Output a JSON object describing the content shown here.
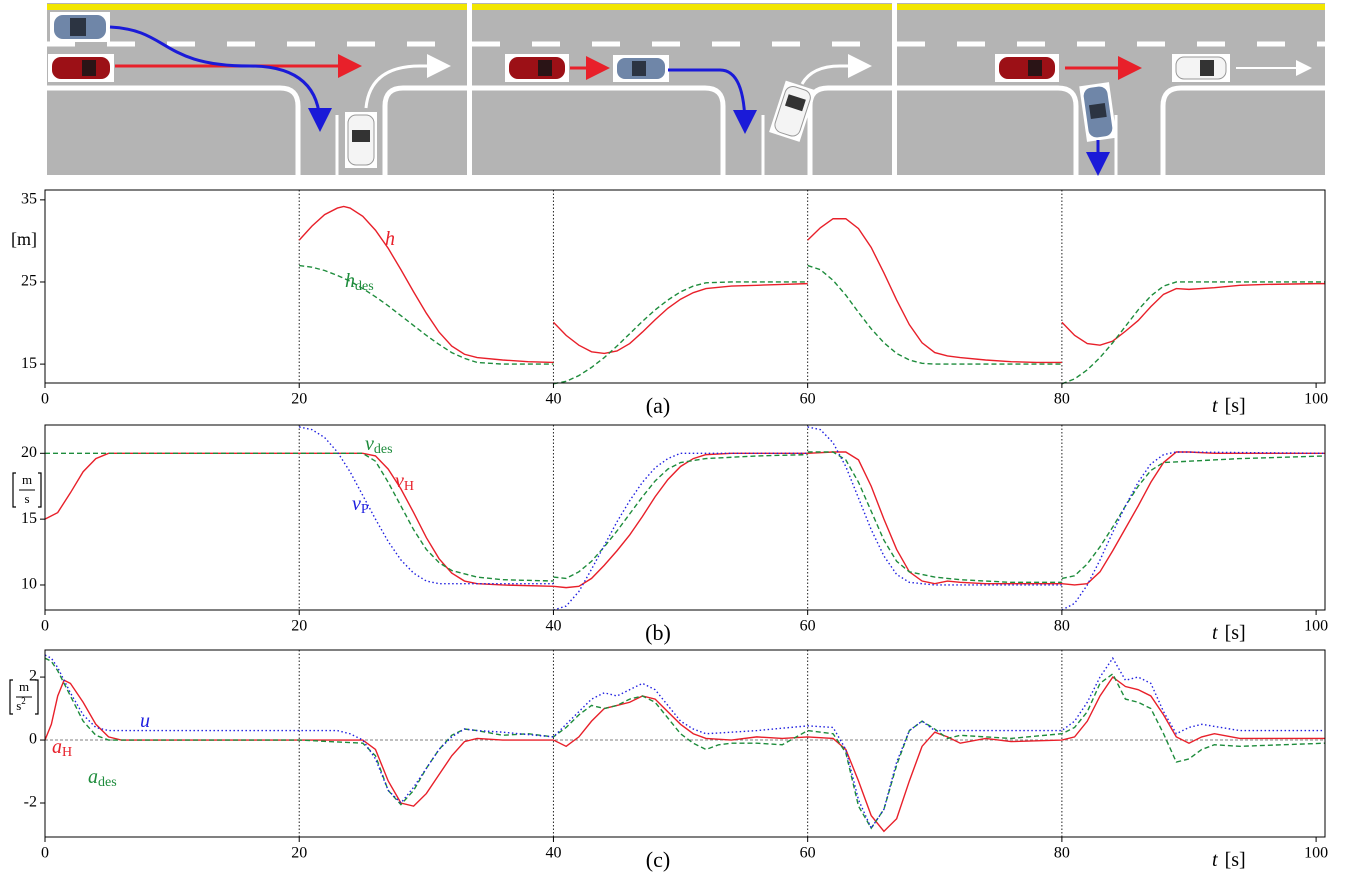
{
  "chart_data": [
    {
      "type": "line",
      "xlim": [
        0,
        100.7
      ],
      "ylim": [
        12.7,
        36.2
      ],
      "xticks": [
        0,
        20,
        40,
        60,
        80,
        100
      ],
      "yticks": [
        15,
        25,
        35
      ],
      "vlines": [
        20,
        40,
        60,
        80
      ],
      "y_label": "[m]",
      "x_label": [
        "t",
        "[s]"
      ],
      "panel_label": "(a)",
      "series": [
        {
          "name": "h",
          "color": "#e8202a",
          "style": "solid",
          "x": [
            20,
            21,
            22,
            23,
            23.5,
            24,
            25,
            26,
            27,
            28,
            29,
            30,
            31,
            32,
            33,
            34,
            36,
            38,
            40,
            40,
            40,
            41,
            42,
            43,
            44,
            45,
            46,
            47,
            48,
            49,
            50,
            51,
            52,
            54,
            56,
            58,
            60,
            60,
            60,
            61,
            62,
            63,
            64,
            65,
            66,
            67,
            68,
            69,
            70,
            71,
            72,
            74,
            76,
            78,
            80,
            80,
            80,
            81,
            82,
            83,
            84,
            85,
            86,
            87,
            88,
            89,
            90,
            92,
            94,
            96,
            100,
            100.7
          ],
          "values": [
            30.1,
            31.8,
            33.2,
            34.0,
            34.2,
            34.0,
            33.0,
            31.3,
            29.1,
            26.5,
            23.8,
            21.2,
            18.9,
            17.2,
            16.2,
            15.8,
            15.5,
            15.3,
            15.2,
            null,
            20.1,
            18.5,
            17.3,
            16.5,
            16.3,
            16.6,
            17.5,
            18.9,
            20.4,
            21.8,
            22.9,
            23.7,
            24.2,
            24.5,
            24.6,
            24.7,
            24.8,
            null,
            30.1,
            31.6,
            32.7,
            32.7,
            31.5,
            29.2,
            26.1,
            22.8,
            19.8,
            17.6,
            16.4,
            16.0,
            15.8,
            15.5,
            15.3,
            15.2,
            15.2,
            null,
            20.1,
            18.5,
            17.5,
            17.3,
            17.8,
            19.0,
            20.3,
            22.0,
            23.5,
            24.2,
            24.1,
            24.3,
            24.6,
            24.7,
            24.8,
            24.8
          ]
        },
        {
          "name": "h",
          "name_sub": "des",
          "color": "#1e8c3c",
          "style": "dashed",
          "x": [
            20,
            21,
            22,
            23,
            24,
            25,
            26,
            27,
            28,
            29,
            30,
            31,
            32,
            33,
            34,
            36,
            40,
            40,
            40,
            41,
            42,
            43,
            44,
            45,
            46,
            47,
            48,
            49,
            50,
            51,
            52,
            54,
            60,
            60,
            60,
            61,
            62,
            63,
            64,
            65,
            66,
            67,
            68,
            69,
            70,
            80,
            80,
            80,
            81,
            82,
            83,
            84,
            85,
            86,
            87,
            88,
            89,
            100.7
          ],
          "values": [
            27,
            26.8,
            26.4,
            25.8,
            25.1,
            24.2,
            23.2,
            22.1,
            20.9,
            19.7,
            18.5,
            17.4,
            16.4,
            15.7,
            15.2,
            15,
            15,
            null,
            12.6,
            12.9,
            13.6,
            14.6,
            15.8,
            17.2,
            18.7,
            20.2,
            21.6,
            22.8,
            23.8,
            24.5,
            24.9,
            25,
            25,
            null,
            27,
            26.5,
            25.2,
            23.4,
            21.3,
            19.3,
            17.6,
            16.3,
            15.5,
            15.1,
            15.0,
            15,
            null,
            12.6,
            13.2,
            14.3,
            15.8,
            17.6,
            19.6,
            21.6,
            23.3,
            24.5,
            25,
            25
          ]
        }
      ]
    },
    {
      "type": "line",
      "xlim": [
        0,
        100.7
      ],
      "ylim": [
        8.1,
        22.15
      ],
      "xticks": [
        0,
        20,
        40,
        60,
        80,
        100
      ],
      "yticks": [
        10,
        15,
        20
      ],
      "vlines": [
        20,
        40,
        60,
        80
      ],
      "y_label": {
        "num": "m",
        "den": "s"
      },
      "x_label": [
        "t",
        "[s]"
      ],
      "panel_label": "(b)",
      "series": [
        {
          "name": "v",
          "name_sub": "H",
          "color": "#e8202a",
          "style": "solid",
          "x": [
            0,
            1,
            2,
            3,
            4,
            5,
            10,
            20,
            25,
            26,
            27,
            28,
            29,
            30,
            31,
            32,
            33,
            34,
            36,
            40,
            41,
            42,
            43,
            44,
            45,
            46,
            47,
            48,
            49,
            50,
            51,
            52,
            54,
            60,
            62,
            63,
            64,
            65,
            66,
            67,
            68,
            69,
            70,
            71,
            72,
            74,
            80,
            81,
            82,
            83,
            84,
            85,
            86,
            87,
            88,
            89,
            90,
            92,
            100.7
          ],
          "values": [
            15,
            15.5,
            17,
            18.6,
            19.6,
            20,
            20,
            20,
            20,
            19.8,
            18.8,
            17.3,
            15.5,
            13.6,
            12,
            10.9,
            10.3,
            10.1,
            10,
            9.9,
            9.8,
            9.9,
            10.5,
            11.5,
            12.6,
            13.8,
            15.2,
            16.7,
            18,
            19,
            19.6,
            19.9,
            20,
            20,
            20.1,
            20.1,
            19.5,
            17.5,
            15,
            12.7,
            11,
            10.3,
            10.1,
            10.3,
            10.2,
            10.1,
            10.1,
            10,
            10.1,
            11,
            12.6,
            14.3,
            16,
            17.8,
            19.3,
            20.1,
            20.1,
            20,
            20
          ]
        },
        {
          "name": "v",
          "name_sub": "des",
          "color": "#1e8c3c",
          "style": "dashed",
          "x": [
            0,
            5,
            25,
            26,
            27,
            28,
            29,
            30,
            31,
            32,
            34,
            36,
            40,
            40,
            40,
            41,
            42,
            43,
            44,
            45,
            46,
            47,
            48,
            49,
            50,
            52,
            56,
            60,
            60,
            60,
            62,
            63,
            64,
            65,
            66,
            67,
            68,
            70,
            72,
            76,
            80,
            80,
            80,
            81,
            82,
            83,
            84,
            85,
            86,
            87,
            88,
            90,
            94,
            100.7
          ],
          "values": [
            20,
            20,
            20,
            19.4,
            17.8,
            16,
            14.2,
            12.7,
            11.7,
            11.1,
            10.6,
            10.4,
            10.3,
            null,
            10.6,
            10.5,
            11,
            11.8,
            12.9,
            14.1,
            15.4,
            16.7,
            17.9,
            18.8,
            19.3,
            19.6,
            19.8,
            19.9,
            null,
            20.1,
            20.1,
            19.5,
            17.8,
            15.6,
            13.4,
            11.8,
            11,
            10.6,
            10.4,
            10.2,
            10.2,
            null,
            10.5,
            10.7,
            11.6,
            12.9,
            14.4,
            16,
            17.5,
            18.7,
            19.3,
            19.4,
            19.6,
            19.8
          ]
        },
        {
          "name": "v",
          "name_sub": "P",
          "color": "#2020e0",
          "style": "dotted",
          "x": [
            20,
            21,
            22,
            23,
            24,
            25,
            26,
            27,
            28,
            29,
            30,
            31,
            40,
            40,
            40,
            41,
            42,
            43,
            44,
            45,
            46,
            47,
            48,
            49,
            50,
            60,
            60,
            60,
            61,
            62,
            63,
            64,
            65,
            66,
            67,
            68,
            70,
            80,
            80,
            80,
            81,
            82,
            83,
            84,
            85,
            86,
            87,
            88,
            89,
            100.7
          ],
          "values": [
            22,
            21.8,
            21.2,
            20.1,
            18.6,
            16.8,
            15,
            13.3,
            11.9,
            10.9,
            10.3,
            10.1,
            10.1,
            null,
            8.1,
            8.4,
            9.5,
            11.2,
            13,
            14.8,
            16.4,
            17.8,
            18.9,
            19.6,
            20,
            20,
            null,
            22,
            21.8,
            20.8,
            19,
            16.6,
            14.2,
            12.2,
            10.8,
            10.2,
            10,
            10,
            null,
            8.1,
            8.6,
            10,
            11.9,
            14,
            16,
            17.8,
            19.2,
            19.9,
            20.1,
            20
          ]
        }
      ]
    },
    {
      "type": "line",
      "xlim": [
        0,
        100.7
      ],
      "ylim": [
        -3.08,
        2.86
      ],
      "xticks": [
        0,
        20,
        40,
        60,
        80,
        100
      ],
      "yticks": [
        -2,
        0,
        2
      ],
      "vlines": [
        20,
        40,
        60,
        80
      ],
      "hlines": [
        0
      ],
      "y_label": {
        "num": "m",
        "den": "s",
        "den_exp": "2"
      },
      "x_label": [
        "t",
        "[s]"
      ],
      "panel_label": "(c)",
      "series": [
        {
          "name": "a",
          "name_sub": "H",
          "color": "#e8202a",
          "style": "solid",
          "x": [
            0,
            0.5,
            1,
            1.5,
            2,
            3,
            4,
            5,
            6,
            20,
            25,
            26,
            27,
            28,
            29,
            30,
            31,
            32,
            33,
            34,
            36,
            38,
            40,
            41,
            42,
            43,
            44,
            45,
            46,
            47,
            48,
            49,
            50,
            51,
            52,
            54,
            56,
            58,
            60,
            62,
            63,
            64,
            65,
            66,
            67,
            68,
            69,
            70,
            71,
            72,
            74,
            76,
            80,
            81,
            82,
            83,
            84,
            85,
            86,
            87,
            88,
            89,
            90,
            91,
            92,
            94,
            100.7
          ],
          "values": [
            0,
            0.5,
            1.4,
            1.9,
            1.8,
            1.2,
            0.5,
            0.1,
            0,
            0,
            0,
            -0.3,
            -1.3,
            -2.0,
            -2.1,
            -1.7,
            -1.1,
            -0.5,
            -0.05,
            0.05,
            0,
            0,
            0,
            -0.2,
            0.1,
            0.6,
            1.0,
            1.1,
            1.2,
            1.4,
            1.3,
            0.9,
            0.5,
            0.2,
            0.05,
            0,
            0.1,
            0.05,
            0.1,
            0.05,
            -0.3,
            -1.3,
            -2.4,
            -2.9,
            -2.5,
            -1.3,
            -0.2,
            0.25,
            0.1,
            -0.1,
            0.05,
            -0.05,
            0,
            0.1,
            0.6,
            1.4,
            2.0,
            1.7,
            1.6,
            1.4,
            0.8,
            0.1,
            -0.1,
            0.1,
            0.2,
            0.05,
            0.05
          ]
        },
        {
          "name": "a",
          "name_sub": "des",
          "color": "#1e8c3c",
          "style": "dashed",
          "x": [
            0,
            0.5,
            1,
            2,
            3,
            4,
            5,
            20,
            25,
            26,
            27,
            28,
            29,
            30,
            31,
            32,
            33,
            34,
            36,
            38,
            40,
            41,
            42,
            43,
            44,
            45,
            46,
            47,
            48,
            49,
            50,
            51,
            52,
            53,
            54,
            56,
            58,
            60,
            62,
            63,
            64,
            65,
            66,
            67,
            68,
            69,
            70,
            71,
            72,
            74,
            76,
            80,
            81,
            82,
            83,
            84,
            85,
            86,
            87,
            88,
            89,
            90,
            91,
            92,
            94,
            100.7
          ],
          "values": [
            2.6,
            2.5,
            2.2,
            1.4,
            0.6,
            0.15,
            0,
            0,
            -0.1,
            -0.5,
            -1.6,
            -2.05,
            -1.6,
            -0.9,
            -0.3,
            0.15,
            0.35,
            0.3,
            0.15,
            0.2,
            0.1,
            0.4,
            0.8,
            1.1,
            1.0,
            1.1,
            1.3,
            1.4,
            1.2,
            0.7,
            0.2,
            -0.1,
            -0.3,
            -0.15,
            -0.1,
            -0.1,
            -0.15,
            0.3,
            0.2,
            -0.4,
            -2.1,
            -2.8,
            -2.2,
            -0.8,
            0.3,
            0.6,
            0.35,
            0.05,
            0.15,
            0.1,
            0.05,
            0.2,
            0.4,
            0.9,
            1.8,
            2.1,
            1.3,
            1.2,
            1.0,
            0.2,
            -0.7,
            -0.6,
            -0.3,
            -0.15,
            -0.2,
            -0.1
          ]
        },
        {
          "name": "u",
          "color": "#2020e0",
          "style": "dotted",
          "x": [
            0,
            0.5,
            1,
            2,
            3,
            4,
            5,
            20,
            23,
            24,
            25,
            26,
            27,
            28,
            29,
            30,
            31,
            32,
            33,
            34,
            36,
            40,
            41,
            42,
            43,
            44,
            45,
            46,
            47,
            48,
            49,
            50,
            51,
            52,
            56,
            60,
            62,
            63,
            64,
            65,
            66,
            67,
            68,
            69,
            70,
            72,
            80,
            81,
            82,
            83,
            84,
            85,
            86,
            87,
            88,
            89,
            90,
            91,
            94,
            100.7
          ],
          "values": [
            2.7,
            2.6,
            2.3,
            1.5,
            0.8,
            0.4,
            0.3,
            0.3,
            0.3,
            0.2,
            0,
            -0.6,
            -1.6,
            -2.0,
            -1.5,
            -0.9,
            -0.3,
            0.1,
            0.35,
            0.3,
            0.25,
            0.1,
            0.5,
            0.9,
            1.3,
            1.5,
            1.4,
            1.6,
            1.8,
            1.6,
            1.1,
            0.6,
            0.35,
            0.2,
            0.3,
            0.45,
            0.4,
            -0.3,
            -1.9,
            -2.8,
            -2.2,
            -0.7,
            0.3,
            0.6,
            0.3,
            0.3,
            0.3,
            0.6,
            1.2,
            2.0,
            2.6,
            1.9,
            2.0,
            1.8,
            0.9,
            0.2,
            0.4,
            0.5,
            0.3,
            0.3
          ]
        }
      ]
    }
  ]
}
